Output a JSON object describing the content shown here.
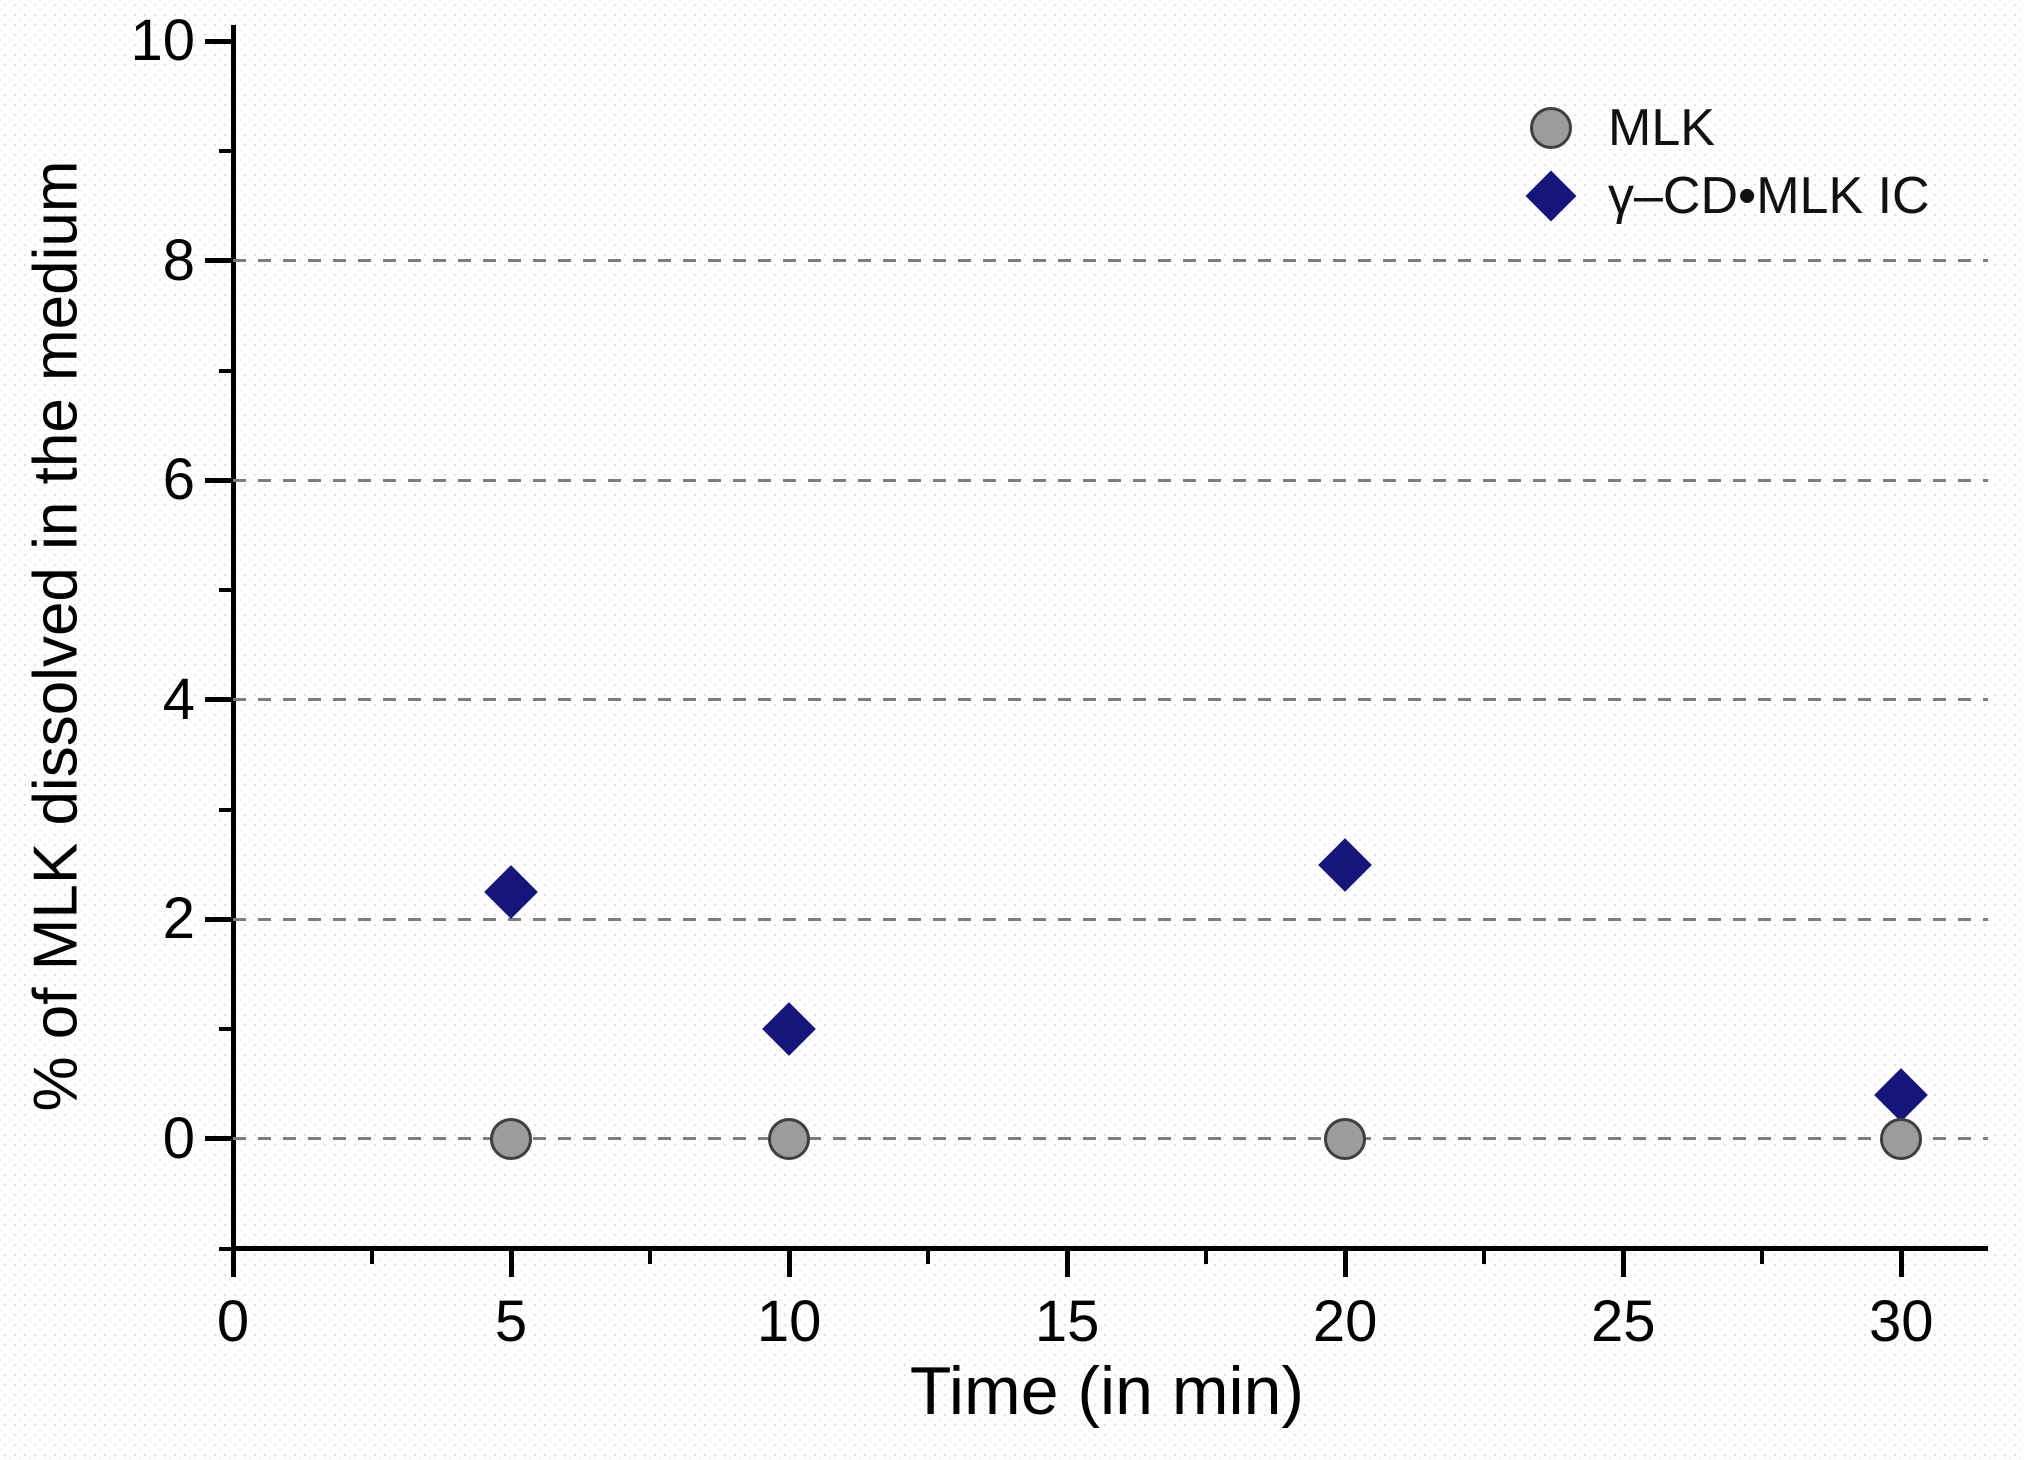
{
  "chart_data": {
    "type": "scatter",
    "title": "",
    "xlabel": "Time (in min)",
    "ylabel": "% of MLK dissolved in the medium",
    "xlim": [
      0,
      31.56
    ],
    "ylim": [
      -0.975,
      10.15
    ],
    "x_major_ticks": [
      0,
      5,
      10,
      15,
      20,
      25,
      30
    ],
    "x_minor_ticks": [
      2.5,
      7.5,
      12.5,
      17.5,
      22.5,
      27.5
    ],
    "y_major_ticks": [
      0,
      2,
      4,
      6,
      8,
      10
    ],
    "y_minor_ticks": [
      -1,
      1,
      3,
      5,
      7,
      9
    ],
    "gridlines_y": [
      0,
      2,
      4,
      6,
      8
    ],
    "grid_style": "dashed",
    "legend_position": "top-right",
    "series": [
      {
        "name": "MLK",
        "marker": "circle",
        "color": "#9c9c9c",
        "edge_color": "#3f3f3f",
        "x": [
          5,
          10,
          20,
          30
        ],
        "y": [
          0,
          0,
          0,
          0
        ]
      },
      {
        "name": "γ–CD•MLK IC",
        "marker": "diamond",
        "color": "#15157c",
        "edge_color": "#15157c",
        "x": [
          5,
          10,
          20,
          30
        ],
        "y": [
          2.25,
          1.0,
          2.5,
          0.4
        ]
      }
    ],
    "axis_color": "#000000",
    "gridline_color": "#7c7c7c"
  }
}
